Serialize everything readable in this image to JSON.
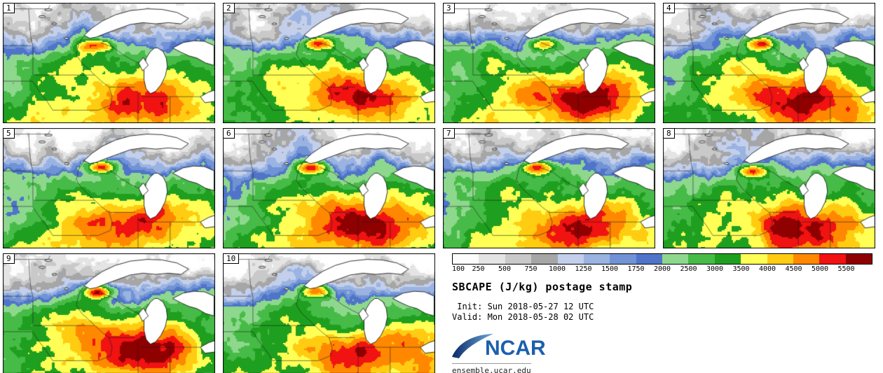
{
  "panels": [
    {
      "label": "1"
    },
    {
      "label": "2"
    },
    {
      "label": "3"
    },
    {
      "label": "4"
    },
    {
      "label": "5"
    },
    {
      "label": "6"
    },
    {
      "label": "7"
    },
    {
      "label": "8"
    },
    {
      "label": "9"
    },
    {
      "label": "10"
    }
  ],
  "colorbar": {
    "levels": [
      100,
      250,
      500,
      750,
      1000,
      1250,
      1500,
      1750,
      2000,
      2500,
      3000,
      3500,
      4000,
      4500,
      5000,
      5500
    ],
    "colors": [
      "#ffffff",
      "#fcfcfc",
      "#e4e4e4",
      "#c9c9c9",
      "#a6a6a6",
      "#c3cfeb",
      "#9ab3e1",
      "#7193d5",
      "#4f74c9",
      "#8ed88e",
      "#47bb47",
      "#1f9f1f",
      "#ffff55",
      "#ffcc11",
      "#ff8800",
      "#f11212",
      "#8f0000"
    ]
  },
  "info": {
    "title": "SBCAPE (J/kg) postage stamp",
    "init": " Init: Sun 2018-05-27 12 UTC",
    "valid": "Valid: Mon 2018-05-28 02 UTC",
    "logo_text": "NCAR",
    "site": "ensemble.ucar.edu"
  }
}
